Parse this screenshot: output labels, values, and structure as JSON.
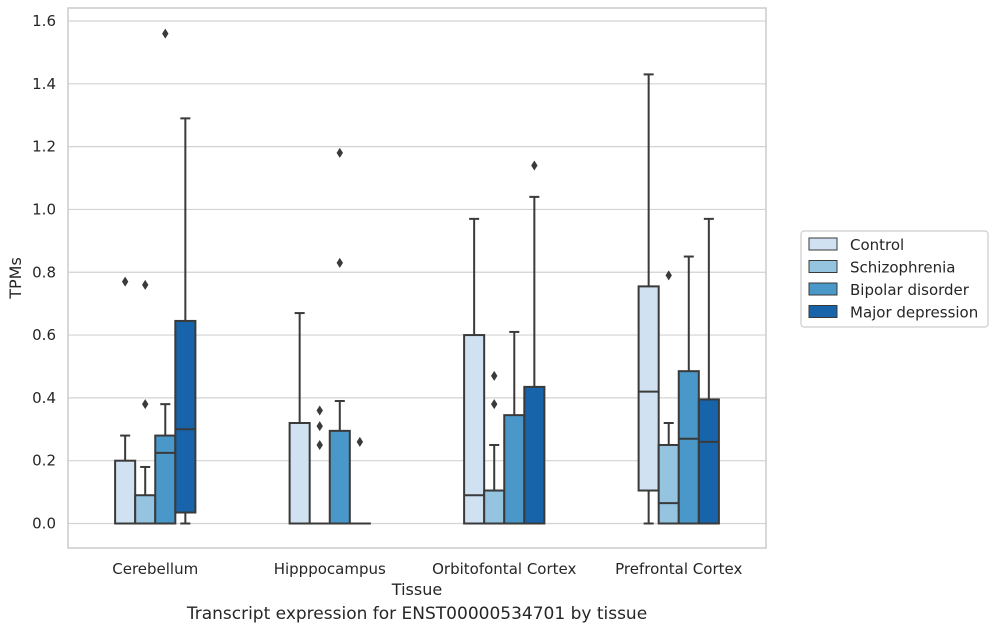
{
  "chart_data": {
    "type": "box",
    "xlabel": "Tissue",
    "ylabel": "TPMs",
    "ylim": [
      -0.075,
      1.64
    ],
    "yticks": [
      0.0,
      0.2,
      0.4,
      0.6,
      0.8,
      1.0,
      1.2,
      1.4,
      1.6
    ],
    "ytick_labels": [
      "0.0",
      "0.2",
      "0.4",
      "0.6",
      "0.8",
      "1.0",
      "1.2",
      "1.4",
      "1.6"
    ],
    "grid": true,
    "legend_position": "right",
    "categories": [
      "Cerebellum",
      "Hipppocampus",
      "Orbitofontal Cortex",
      "Prefrontal Cortex"
    ],
    "series": [
      {
        "name": "Control",
        "color": "#d0e1f2",
        "boxes": [
          {
            "min": 0.0,
            "q1": 0.0,
            "median": 0.0,
            "q3": 0.2,
            "max": 0.28,
            "outliers": [
              0.77
            ]
          },
          {
            "min": 0.0,
            "q1": 0.0,
            "median": 0.0,
            "q3": 0.32,
            "max": 0.67,
            "outliers": []
          },
          {
            "min": 0.0,
            "q1": 0.0,
            "median": 0.09,
            "q3": 0.6,
            "max": 0.97,
            "outliers": []
          },
          {
            "min": 0.0,
            "q1": 0.105,
            "median": 0.42,
            "q3": 0.755,
            "max": 1.43,
            "outliers": []
          }
        ]
      },
      {
        "name": "Schizophrenia",
        "color": "#94c4df",
        "boxes": [
          {
            "min": 0.0,
            "q1": 0.0,
            "median": 0.0,
            "q3": 0.09,
            "max": 0.18,
            "outliers": [
              0.38,
              0.76
            ]
          },
          {
            "min": 0.0,
            "q1": 0.0,
            "median": 0.0,
            "q3": 0.0,
            "max": 0.0,
            "outliers": [
              0.25,
              0.31,
              0.36
            ]
          },
          {
            "min": 0.0,
            "q1": 0.0,
            "median": 0.0,
            "q3": 0.105,
            "max": 0.25,
            "outliers": [
              0.38,
              0.47
            ]
          },
          {
            "min": 0.0,
            "q1": 0.0,
            "median": 0.065,
            "q3": 0.25,
            "max": 0.32,
            "outliers": [
              0.79
            ]
          }
        ]
      },
      {
        "name": "Bipolar disorder",
        "color": "#4a98c9",
        "boxes": [
          {
            "min": 0.0,
            "q1": 0.0,
            "median": 0.225,
            "q3": 0.28,
            "max": 0.38,
            "outliers": [
              1.56
            ]
          },
          {
            "min": 0.0,
            "q1": 0.0,
            "median": 0.0,
            "q3": 0.295,
            "max": 0.39,
            "outliers": [
              0.83,
              1.18
            ]
          },
          {
            "min": 0.0,
            "q1": 0.0,
            "median": 0.0,
            "q3": 0.345,
            "max": 0.61,
            "outliers": []
          },
          {
            "min": 0.0,
            "q1": 0.0,
            "median": 0.27,
            "q3": 0.485,
            "max": 0.85,
            "outliers": []
          }
        ]
      },
      {
        "name": "Major depression",
        "color": "#1764ab",
        "boxes": [
          {
            "min": 0.0,
            "q1": 0.035,
            "median": 0.3,
            "q3": 0.645,
            "max": 1.29,
            "outliers": []
          },
          {
            "min": 0.0,
            "q1": 0.0,
            "median": 0.0,
            "q3": 0.0,
            "max": 0.0,
            "outliers": [
              0.26
            ]
          },
          {
            "min": 0.0,
            "q1": 0.0,
            "median": 0.0,
            "q3": 0.435,
            "max": 1.04,
            "outliers": [
              1.14
            ]
          },
          {
            "min": 0.0,
            "q1": 0.0,
            "median": 0.26,
            "q3": 0.395,
            "max": 0.97,
            "outliers": []
          }
        ]
      }
    ]
  },
  "caption": "Transcript expression for ENST00000534701 by tissue"
}
